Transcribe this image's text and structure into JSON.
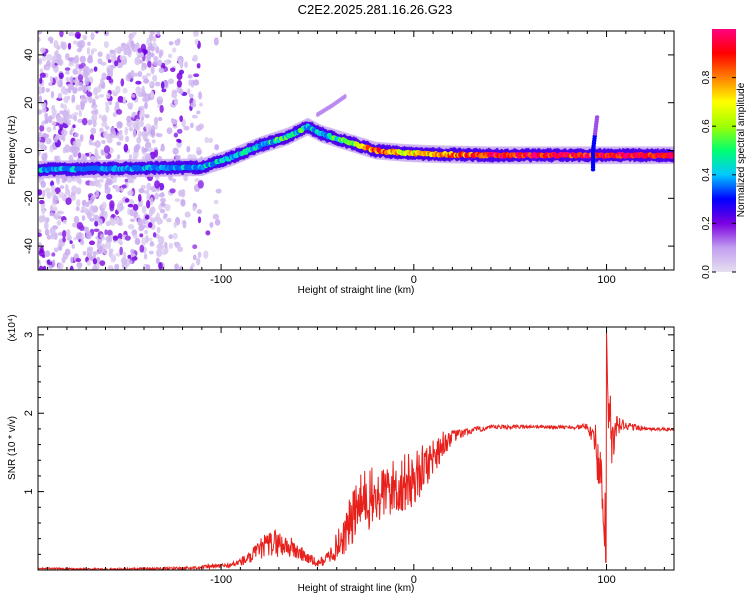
{
  "title": "C2E2.2025.281.16.26.G23",
  "chart_data": [
    {
      "type": "heatmap",
      "name": "spectrogram",
      "xlabel": "Height of straight line (km)",
      "ylabel": "Frequency (Hz)",
      "xlim": [
        -195,
        135
      ],
      "ylim": [
        -50,
        50
      ],
      "xticks": [
        -100,
        0,
        100
      ],
      "xtick_labels": [
        "-100",
        "0",
        "100"
      ],
      "yticks": [
        -40,
        -20,
        0,
        20,
        40
      ],
      "ytick_labels": [
        "-40",
        "-20",
        "0",
        "20",
        "40"
      ],
      "colorbar": {
        "label": "Normalized spectral amplitude",
        "ticks": [
          0.0,
          0.2,
          0.4,
          0.6,
          0.8
        ],
        "tick_labels": [
          "0.0",
          "0.2",
          "0.4",
          "0.6",
          "0.8"
        ],
        "range": [
          0,
          1
        ],
        "colors": [
          "#e6e0f0",
          "#c29ef0",
          "#7a00e0",
          "#0000ff",
          "#00c8ff",
          "#00ff70",
          "#a0ff00",
          "#ffff00",
          "#ff8000",
          "#ff0000",
          "#ff0080"
        ]
      },
      "main_ridge": {
        "x": [
          -195,
          -150,
          -110,
          -95,
          -80,
          -65,
          -55,
          -48,
          -40,
          -32,
          -20,
          -5,
          10,
          40,
          90,
          135
        ],
        "frequency": [
          -8,
          -7.5,
          -7,
          -3,
          2,
          6,
          10,
          7,
          5,
          3,
          0,
          -1,
          -1.5,
          -2,
          -2,
          -2
        ],
        "amplitude": [
          0.35,
          0.3,
          0.35,
          0.4,
          0.45,
          0.5,
          0.45,
          0.45,
          0.5,
          0.55,
          0.85,
          0.7,
          0.75,
          0.9,
          0.9,
          0.95
        ]
      },
      "secondary_ridge": {
        "x": [
          -50,
          -42,
          -35
        ],
        "frequency": [
          15,
          19,
          23
        ]
      },
      "spike": {
        "x": 93,
        "frequency_range": [
          -8,
          14
        ]
      }
    },
    {
      "type": "line",
      "name": "snr",
      "xlabel": "Height of straight line (km)",
      "ylabel": "SNR (10 * v/v)",
      "y_multiplier": "(x10⁴)",
      "xlim": [
        -195,
        135
      ],
      "ylim": [
        0,
        3.1
      ],
      "xticks": [
        -100,
        0,
        100
      ],
      "xtick_labels": [
        "-100",
        "0",
        "100"
      ],
      "yticks": [
        1,
        2,
        3
      ],
      "ytick_labels": [
        "1",
        "2",
        "3"
      ],
      "color": "#e8201c",
      "series": [
        {
          "name": "SNR",
          "x": [
            -195,
            -160,
            -120,
            -95,
            -85,
            -78,
            -72,
            -65,
            -58,
            -50,
            -45,
            -40,
            -35,
            -30,
            -25,
            -20,
            -15,
            -10,
            -5,
            0,
            5,
            10,
            15,
            20,
            30,
            40,
            60,
            80,
            90,
            94,
            96,
            98,
            99,
            100,
            101,
            103,
            106,
            110,
            120,
            135
          ],
          "y": [
            0.02,
            0.01,
            0.02,
            0.06,
            0.15,
            0.3,
            0.35,
            0.3,
            0.2,
            0.08,
            0.15,
            0.3,
            0.5,
            0.75,
            0.9,
            0.9,
            1.0,
            1.05,
            1.1,
            1.15,
            1.3,
            1.45,
            1.6,
            1.7,
            1.78,
            1.82,
            1.83,
            1.82,
            1.83,
            1.7,
            1.3,
            0.8,
            0.3,
            3.05,
            2.1,
            1.55,
            1.85,
            1.84,
            1.8,
            1.79
          ],
          "noise_amplitude": [
            0.01,
            0.01,
            0.02,
            0.03,
            0.08,
            0.15,
            0.18,
            0.15,
            0.1,
            0.05,
            0.08,
            0.18,
            0.3,
            0.4,
            0.42,
            0.4,
            0.35,
            0.38,
            0.38,
            0.36,
            0.3,
            0.25,
            0.18,
            0.08,
            0.04,
            0.03,
            0.02,
            0.02,
            0.04,
            0.2,
            0.4,
            0.5,
            0.0,
            0.0,
            0.5,
            0.4,
            0.15,
            0.06,
            0.02,
            0.02
          ]
        }
      ]
    }
  ]
}
